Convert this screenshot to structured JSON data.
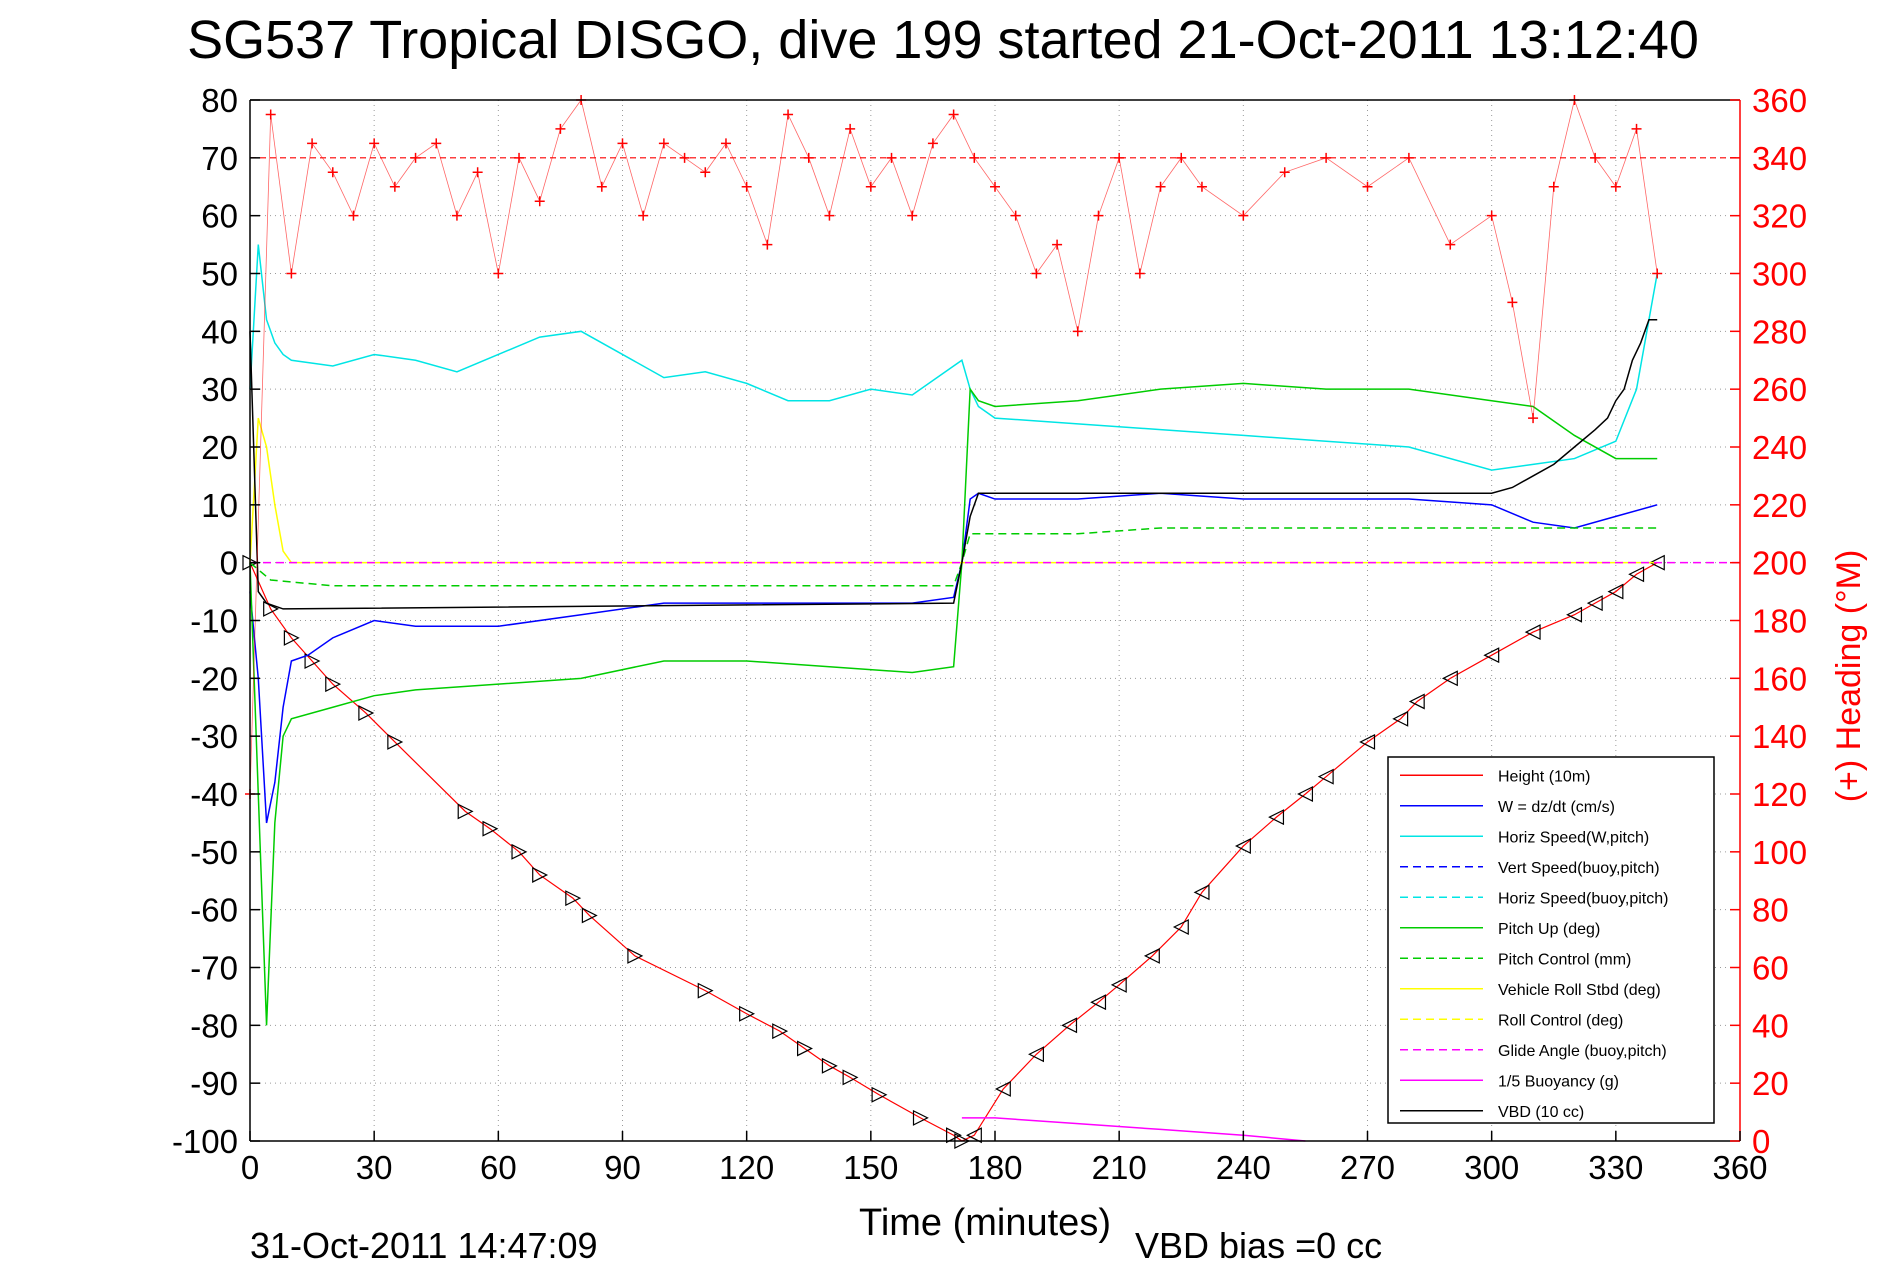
{
  "chart_data": {
    "type": "line",
    "title": "SG537 Tropical DISGO, dive 199 started 21-Oct-2011 13:12:40",
    "xlabel": "Time (minutes)",
    "ylabel_left": "",
    "ylabel_right": "(+) Heading (°M)",
    "footer_left": "31-Oct-2011 14:47:09",
    "footer_right": "VBD bias =0 cc",
    "xlim": [
      0,
      360
    ],
    "ylim": [
      -100,
      80
    ],
    "ylim_right": [
      0,
      360
    ],
    "xticks": [
      0,
      30,
      60,
      90,
      120,
      150,
      180,
      210,
      240,
      270,
      300,
      330,
      360
    ],
    "yticks": [
      -100,
      -90,
      -80,
      -70,
      -60,
      -50,
      -40,
      -30,
      -20,
      -10,
      0,
      10,
      20,
      30,
      40,
      50,
      60,
      70,
      80
    ],
    "yticks_right": [
      0,
      20,
      40,
      60,
      80,
      100,
      120,
      140,
      160,
      180,
      200,
      220,
      240,
      260,
      280,
      300,
      320,
      340,
      360
    ],
    "grid": true,
    "legend_position": "bottom-right",
    "colors": {
      "height": "#ff0000",
      "w": "#0000ff",
      "horiz_speed": "#00e5e5",
      "vert_speed_buoy": "#0000ff",
      "horiz_speed_buoy": "#00e5e5",
      "pitch": "#00cc00",
      "pitch_control": "#00cc00",
      "roll": "#ffff00",
      "roll_control": "#ffff00",
      "glide_angle": "#ff00ff",
      "buoyancy": "#ff00ff",
      "vbd": "#000000",
      "heading": "#ff0000"
    },
    "legend": [
      "Height (10m)",
      "W = dz/dt (cm/s)",
      "Horiz Speed(W,pitch)",
      "Vert Speed(buoy,pitch)",
      "Horiz Speed(buoy,pitch)",
      "Pitch Up (deg)",
      "Pitch Control (mm)",
      "Vehicle Roll Stbd (deg)",
      "Roll Control (deg)",
      "Glide Angle (buoy,pitch)",
      "1/5 Buoyancy (g)",
      "VBD (10 cc)"
    ],
    "series": [
      {
        "name": "Height (10m)",
        "x": [
          0,
          5,
          10,
          15,
          20,
          28,
          35,
          52,
          58,
          65,
          70,
          78,
          82,
          93,
          110,
          120,
          128,
          134,
          140,
          145,
          152,
          162,
          170,
          172,
          175,
          182,
          190,
          198,
          205,
          210,
          218,
          225,
          230,
          240,
          248,
          255,
          260,
          270,
          278,
          282,
          290,
          300,
          310,
          320,
          325,
          330,
          335,
          340
        ],
        "y": [
          0,
          -8,
          -13,
          -17,
          -21,
          -26,
          -31,
          -43,
          -46,
          -50,
          -54,
          -58,
          -61,
          -68,
          -74,
          -78,
          -81,
          -84,
          -87,
          -89,
          -92,
          -96,
          -99,
          -100,
          -99,
          -91,
          -85,
          -80,
          -76,
          -73,
          -68,
          -63,
          -57,
          -49,
          -44,
          -40,
          -37,
          -31,
          -27,
          -24,
          -20,
          -16,
          -12,
          -9,
          -7,
          -5,
          -2,
          0
        ]
      },
      {
        "name": "W = dz/dt (cm/s)",
        "x": [
          0,
          2,
          4,
          6,
          8,
          10,
          14,
          20,
          30,
          40,
          60,
          80,
          100,
          120,
          140,
          160,
          170,
          172,
          174,
          176,
          180,
          200,
          220,
          240,
          260,
          280,
          300,
          310,
          320,
          330,
          340
        ],
        "y": [
          -5,
          -20,
          -45,
          -38,
          -25,
          -17,
          -16,
          -13,
          -10,
          -11,
          -11,
          -9,
          -7,
          -7,
          -7,
          -7,
          -6,
          0,
          11,
          12,
          11,
          11,
          12,
          11,
          11,
          11,
          10,
          7,
          6,
          8,
          10
        ]
      },
      {
        "name": "Horiz Speed(W,pitch)",
        "x": [
          0,
          2,
          4,
          6,
          8,
          10,
          20,
          30,
          40,
          50,
          60,
          70,
          80,
          90,
          100,
          110,
          120,
          130,
          140,
          150,
          160,
          170,
          172,
          174,
          176,
          180,
          200,
          220,
          240,
          260,
          280,
          300,
          310,
          320,
          330,
          335,
          340
        ],
        "y": [
          30,
          55,
          42,
          38,
          36,
          35,
          34,
          36,
          35,
          33,
          36,
          39,
          40,
          36,
          32,
          33,
          31,
          28,
          28,
          30,
          29,
          34,
          35,
          30,
          27,
          25,
          24,
          23,
          22,
          21,
          20,
          16,
          17,
          18,
          21,
          30,
          50
        ]
      },
      {
        "name": "Pitch Up (deg)",
        "x": [
          0,
          2,
          4,
          6,
          8,
          10,
          20,
          30,
          40,
          60,
          80,
          100,
          120,
          140,
          160,
          170,
          172,
          174,
          176,
          180,
          200,
          220,
          240,
          260,
          280,
          300,
          310,
          320,
          330,
          340
        ],
        "y": [
          0,
          -40,
          -80,
          -45,
          -30,
          -27,
          -25,
          -23,
          -22,
          -21,
          -20,
          -17,
          -17,
          -18,
          -19,
          -18,
          0,
          30,
          28,
          27,
          28,
          30,
          31,
          30,
          30,
          28,
          27,
          22,
          18,
          18
        ]
      },
      {
        "name": "Pitch Control (mm)",
        "x": [
          0,
          5,
          20,
          40,
          60,
          80,
          100,
          120,
          140,
          160,
          170,
          172,
          174,
          180,
          200,
          220,
          240,
          260,
          280,
          300,
          320,
          340
        ],
        "y": [
          0,
          -3,
          -4,
          -4,
          -4,
          -4,
          -4,
          -4,
          -4,
          -4,
          -4,
          0,
          5,
          5,
          5,
          6,
          6,
          6,
          6,
          6,
          6,
          6
        ]
      },
      {
        "name": "Vehicle Roll Stbd (deg)",
        "x": [
          0,
          2,
          4,
          6,
          8,
          10,
          20,
          40,
          60,
          80,
          100,
          120,
          140,
          160,
          170,
          172,
          174,
          180,
          200,
          220,
          240,
          260,
          280,
          300,
          320,
          340
        ],
        "y": [
          0,
          25,
          20,
          10,
          2,
          0,
          0,
          0,
          0,
          0,
          0,
          0,
          0,
          0,
          0,
          0,
          0,
          0,
          0,
          0,
          0,
          0,
          0,
          0,
          0,
          0
        ]
      },
      {
        "name": "Glide Angle (buoy,pitch)",
        "x": [
          0,
          360
        ],
        "y": [
          0,
          0
        ]
      },
      {
        "name": "1/5 Buoyancy (g)",
        "x": [
          172,
          180,
          200,
          220,
          240,
          255
        ],
        "y": [
          -96,
          -96,
          -97,
          -98,
          -99,
          -100
        ]
      },
      {
        "name": "VBD (10 cc)",
        "x": [
          0,
          2,
          4,
          8,
          170,
          172,
          174,
          176,
          300,
          305,
          310,
          315,
          320,
          325,
          328,
          330,
          332,
          334,
          336,
          338,
          340
        ],
        "y": [
          40,
          -5,
          -7,
          -8,
          -7,
          0,
          8,
          12,
          12,
          13,
          15,
          17,
          20,
          23,
          25,
          28,
          30,
          35,
          38,
          42,
          42
        ]
      },
      {
        "name": "Heading",
        "axis": "right",
        "x": [
          0,
          5,
          10,
          15,
          20,
          25,
          30,
          35,
          40,
          45,
          50,
          55,
          60,
          65,
          70,
          75,
          80,
          85,
          90,
          95,
          100,
          105,
          110,
          115,
          120,
          125,
          130,
          135,
          140,
          145,
          150,
          155,
          160,
          165,
          170,
          175,
          180,
          185,
          190,
          195,
          200,
          205,
          210,
          215,
          220,
          225,
          230,
          240,
          250,
          260,
          270,
          280,
          290,
          300,
          305,
          310,
          315,
          320,
          325,
          330,
          335,
          340
        ],
        "y": [
          120,
          355,
          300,
          345,
          335,
          320,
          345,
          330,
          340,
          345,
          320,
          335,
          300,
          340,
          325,
          350,
          360,
          330,
          345,
          320,
          345,
          340,
          335,
          345,
          330,
          310,
          355,
          340,
          320,
          350,
          330,
          340,
          320,
          345,
          355,
          340,
          330,
          320,
          300,
          310,
          280,
          320,
          340,
          300,
          330,
          340,
          330,
          320,
          335,
          340,
          330,
          340,
          310,
          320,
          290,
          250,
          330,
          360,
          340,
          330,
          350,
          300
        ]
      }
    ],
    "heading_reference_deg": 340
  }
}
